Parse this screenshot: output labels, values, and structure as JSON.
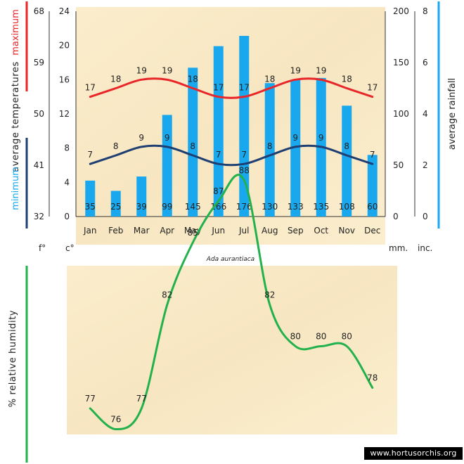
{
  "chart_data": [
    {
      "type": "bar+line",
      "title": "Ada aurantiaca",
      "categories": [
        "Jan",
        "Feb",
        "Mar",
        "Apr",
        "May",
        "Jun",
        "Jul",
        "Aug",
        "Sep",
        "Oct",
        "Nov",
        "Dec"
      ],
      "rainfall_mm": [
        35,
        25,
        39,
        99,
        145,
        166,
        176,
        130,
        133,
        135,
        108,
        60
      ],
      "max_temp_c": [
        17,
        18,
        19,
        19,
        18,
        17,
        17,
        18,
        19,
        19,
        18,
        17
      ],
      "min_temp_c": [
        7,
        8,
        9,
        9,
        8,
        7,
        7,
        8,
        9,
        9,
        8,
        7
      ],
      "left_axis_f": {
        "ticks": [
          "68",
          "59",
          "50",
          "41",
          "32"
        ],
        "unit": "f°"
      },
      "left_axis_c": {
        "ticks": [
          "24",
          "20",
          "16",
          "12",
          "8",
          "4",
          "0"
        ],
        "unit": "c°",
        "ylim": [
          0,
          24
        ]
      },
      "right_axis_mm": {
        "ticks": [
          "200",
          "150",
          "100",
          "50",
          "0"
        ],
        "unit": "mm.",
        "ylim": [
          0,
          200
        ]
      },
      "right_axis_inc": {
        "ticks": [
          "8",
          "6",
          "4",
          "2",
          "0"
        ],
        "unit": "inc."
      },
      "label_max": "maximum",
      "label_avg_temp": "average temperatures",
      "label_min": "minimum",
      "label_rain": "average rainfall",
      "colors": {
        "max": "#e8262a",
        "min": "#1f3f73",
        "rain": "#19a8ee",
        "axis_left_top": "#e8262a",
        "axis_left_bottom": "#1f3f73",
        "axis_right": "#19a8ee"
      }
    },
    {
      "type": "line",
      "categories": [
        "Jan",
        "Feb",
        "Mar",
        "Apr",
        "May",
        "Jun",
        "Jul",
        "Aug",
        "Sep",
        "Oct",
        "Nov",
        "Dec"
      ],
      "humidity_pct": [
        77,
        76,
        77,
        82,
        85,
        87,
        88,
        82,
        80,
        80,
        80,
        78
      ],
      "ylabel": "% relative humidity",
      "colors": {
        "line": "#22b14c"
      }
    }
  ],
  "credit": "www.hortusorchis.org"
}
